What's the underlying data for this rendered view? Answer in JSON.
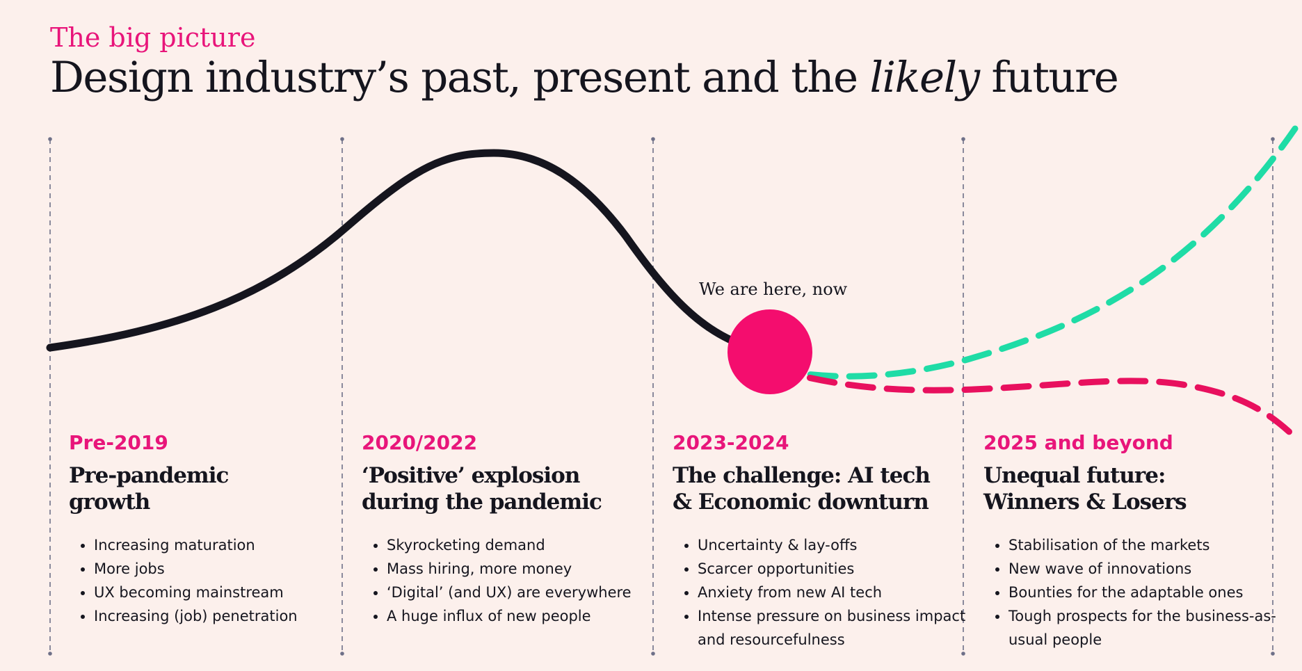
{
  "header": {
    "kicker": "The big picture",
    "title_before": "Design industry’s past, present and the ",
    "title_emphasis": "likely",
    "title_after": " future"
  },
  "marker": {
    "label": "We are here, now"
  },
  "colors": {
    "accent": "#E8157A",
    "positive_path": "#1FDCA6",
    "negative_path": "#E8105E",
    "ink": "#15151E",
    "background": "#FCF0EC"
  },
  "phases": [
    {
      "years": "Pre-2019",
      "title_lines": [
        "Pre-pandemic",
        "growth"
      ],
      "bullets": [
        "Increasing maturation",
        "More jobs",
        "UX becoming mainstream",
        "Increasing (job) penetration"
      ]
    },
    {
      "years": "2020/2022",
      "title_lines": [
        "‘Positive’ explosion",
        "during the pandemic"
      ],
      "bullets": [
        "Skyrocketing demand",
        "Mass hiring, more money",
        "‘Digital’ (and UX) are everywhere",
        "A huge influx of new people"
      ]
    },
    {
      "years": "2023-2024",
      "title_lines": [
        "The challenge: AI tech",
        "& Economic downturn"
      ],
      "bullets": [
        "Uncertainty & lay-offs",
        "Scarcer opportunities",
        "Anxiety from new AI tech",
        "Intense pressure on business impact and resourcefulness"
      ]
    },
    {
      "years": "2025 and beyond",
      "title_lines": [
        "Unequal future:",
        "Winners & Losers"
      ],
      "bullets": [
        "Stabilisation of the markets",
        "New wave of innovations",
        "Bounties for the adaptable ones",
        "Tough prospects for the business-as-usual people"
      ]
    }
  ]
}
